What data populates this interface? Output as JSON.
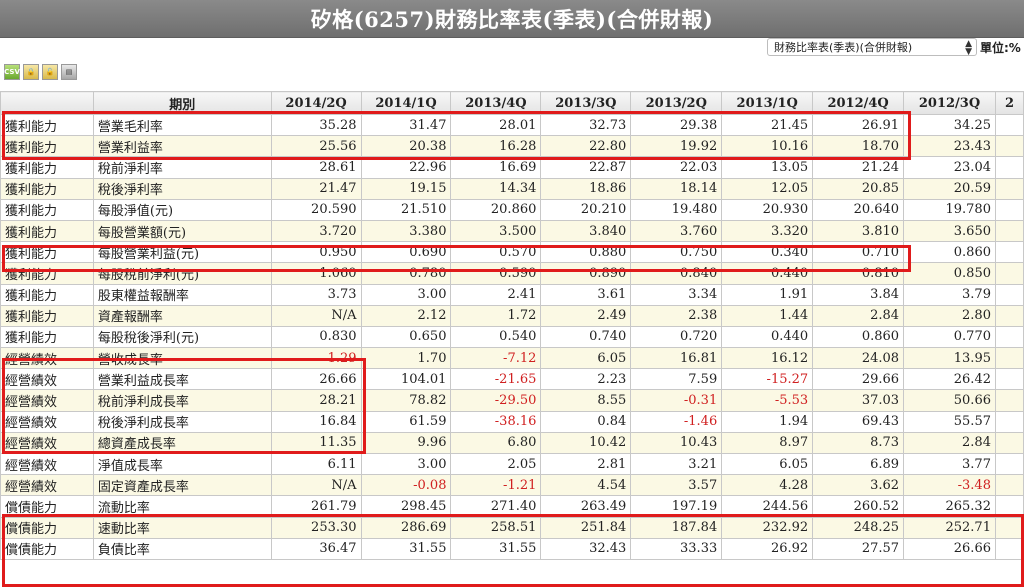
{
  "title": "矽格(6257)財務比率表(季表)(合併財報)",
  "selector": {
    "value": "財務比率表(季表)(合併財報)"
  },
  "unit_label": "單位:%",
  "toolbar": {
    "csv_label": "CSV"
  },
  "table": {
    "headers": [
      "",
      "期別",
      "2014/2Q",
      "2014/1Q",
      "2013/4Q",
      "2013/3Q",
      "2013/2Q",
      "2013/1Q",
      "2012/4Q",
      "2012/3Q",
      "2"
    ],
    "rows": [
      {
        "cat": "獲利能力",
        "item": "營業毛利率",
        "vals": [
          "35.28",
          "31.47",
          "28.01",
          "32.73",
          "29.38",
          "21.45",
          "26.91",
          "34.25"
        ]
      },
      {
        "cat": "獲利能力",
        "item": "營業利益率",
        "vals": [
          "25.56",
          "20.38",
          "16.28",
          "22.80",
          "19.92",
          "10.16",
          "18.70",
          "23.43"
        ]
      },
      {
        "cat": "獲利能力",
        "item": "稅前淨利率",
        "vals": [
          "28.61",
          "22.96",
          "16.69",
          "22.87",
          "22.03",
          "13.05",
          "21.24",
          "23.04"
        ]
      },
      {
        "cat": "獲利能力",
        "item": "稅後淨利率",
        "vals": [
          "21.47",
          "19.15",
          "14.34",
          "18.86",
          "18.14",
          "12.05",
          "20.85",
          "20.59"
        ]
      },
      {
        "cat": "獲利能力",
        "item": "每股淨值(元)",
        "vals": [
          "20.590",
          "21.510",
          "20.860",
          "20.210",
          "19.480",
          "20.930",
          "20.640",
          "19.780"
        ]
      },
      {
        "cat": "獲利能力",
        "item": "每股營業額(元)",
        "vals": [
          "3.720",
          "3.380",
          "3.500",
          "3.840",
          "3.760",
          "3.320",
          "3.810",
          "3.650"
        ]
      },
      {
        "cat": "獲利能力",
        "item": "每股營業利益(元)",
        "vals": [
          "0.950",
          "0.690",
          "0.570",
          "0.880",
          "0.750",
          "0.340",
          "0.710",
          "0.860"
        ]
      },
      {
        "cat": "獲利能力",
        "item": "每股稅前淨利(元)",
        "vals": [
          "1.060",
          "0.780",
          "0.590",
          "0.890",
          "0.840",
          "0.440",
          "0.810",
          "0.850"
        ]
      },
      {
        "cat": "獲利能力",
        "item": "股東權益報酬率",
        "vals": [
          "3.73",
          "3.00",
          "2.41",
          "3.61",
          "3.34",
          "1.91",
          "3.84",
          "3.79"
        ]
      },
      {
        "cat": "獲利能力",
        "item": "資產報酬率",
        "vals": [
          "N/A",
          "2.12",
          "1.72",
          "2.49",
          "2.38",
          "1.44",
          "2.84",
          "2.80"
        ]
      },
      {
        "cat": "獲利能力",
        "item": "每股稅後淨利(元)",
        "vals": [
          "0.830",
          "0.650",
          "0.540",
          "0.740",
          "0.720",
          "0.440",
          "0.860",
          "0.770"
        ]
      },
      {
        "cat": "經營績效",
        "item": "營收成長率",
        "vals": [
          "-1.29",
          "1.70",
          "-7.12",
          "6.05",
          "16.81",
          "16.12",
          "24.08",
          "13.95"
        ]
      },
      {
        "cat": "經營績效",
        "item": "營業利益成長率",
        "vals": [
          "26.66",
          "104.01",
          "-21.65",
          "2.23",
          "7.59",
          "-15.27",
          "29.66",
          "26.42"
        ]
      },
      {
        "cat": "經營績效",
        "item": "稅前淨利成長率",
        "vals": [
          "28.21",
          "78.82",
          "-29.50",
          "8.55",
          "-0.31",
          "-5.53",
          "37.03",
          "50.66"
        ]
      },
      {
        "cat": "經營績效",
        "item": "稅後淨利成長率",
        "vals": [
          "16.84",
          "61.59",
          "-38.16",
          "0.84",
          "-1.46",
          "1.94",
          "69.43",
          "55.57"
        ]
      },
      {
        "cat": "經營績效",
        "item": "總資產成長率",
        "vals": [
          "11.35",
          "9.96",
          "6.80",
          "10.42",
          "10.43",
          "8.97",
          "8.73",
          "2.84"
        ]
      },
      {
        "cat": "經營績效",
        "item": "淨值成長率",
        "vals": [
          "6.11",
          "3.00",
          "2.05",
          "2.81",
          "3.21",
          "6.05",
          "6.89",
          "3.77"
        ]
      },
      {
        "cat": "經營績效",
        "item": "固定資產成長率",
        "vals": [
          "N/A",
          "-0.08",
          "-1.21",
          "4.54",
          "3.57",
          "4.28",
          "3.62",
          "-3.48"
        ]
      },
      {
        "cat": "償債能力",
        "item": "流動比率",
        "vals": [
          "261.79",
          "298.45",
          "271.40",
          "263.49",
          "197.19",
          "244.56",
          "260.52",
          "265.32"
        ]
      },
      {
        "cat": "償債能力",
        "item": "速動比率",
        "vals": [
          "253.30",
          "286.69",
          "258.51",
          "251.84",
          "187.84",
          "232.92",
          "248.25",
          "252.71"
        ]
      },
      {
        "cat": "償債能力",
        "item": "負債比率",
        "vals": [
          "36.47",
          "31.55",
          "31.55",
          "32.43",
          "33.33",
          "26.92",
          "27.57",
          "26.66"
        ]
      }
    ]
  },
  "colors": {
    "highlight": "#e01b1b",
    "negative": "#d02020",
    "title_bar": "#7a7a7a"
  }
}
